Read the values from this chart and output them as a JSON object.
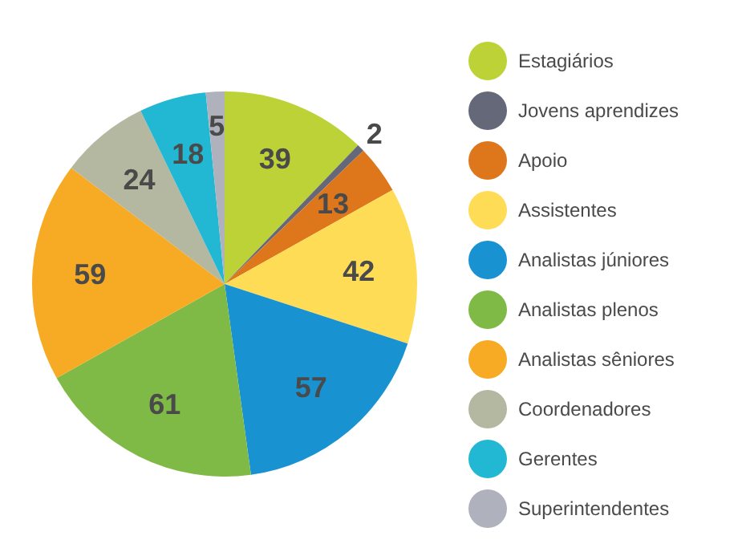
{
  "chart_data": {
    "type": "pie",
    "categories": [
      "Estagiários",
      "Jovens aprendizes",
      "Apoio",
      "Assistentes",
      "Analistas júniores",
      "Analistas plenos",
      "Analistas sêniores",
      "Coordenadores",
      "Gerentes",
      "Superintendentes"
    ],
    "values": [
      39,
      2,
      13,
      42,
      57,
      61,
      59,
      24,
      18,
      5
    ],
    "colors": [
      "#bdd237",
      "#646879",
      "#de771c",
      "#ffdc55",
      "#1892d1",
      "#80ba46",
      "#f7ab24",
      "#b4b8a0",
      "#22b7d3",
      "#afb2bc"
    ],
    "data_labels": true,
    "legend": "right"
  }
}
